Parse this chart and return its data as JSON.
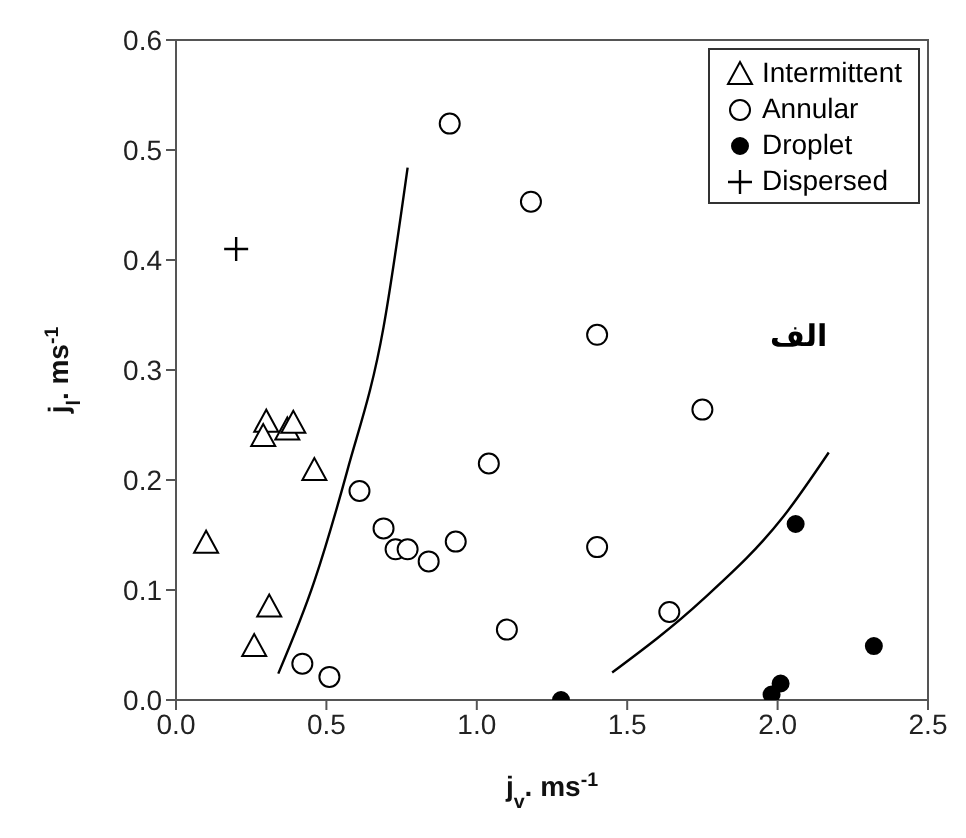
{
  "chart_data": {
    "type": "scatter",
    "xlabel": "j$_{v}$. ms$^{-1}$",
    "ylabel": "j$_{l}$. ms$^{-1}$",
    "annotations": [
      "الف"
    ],
    "xlim": [
      0,
      2.5
    ],
    "xticks": [
      {
        "value": 0,
        "label": "0.0"
      },
      0.5,
      {
        "value": 1,
        "label": "1.0"
      },
      1.5,
      {
        "value": 2,
        "label": "2.0"
      },
      2.5
    ],
    "ylim": [
      0,
      0.6
    ],
    "yticks": [
      {
        "value": 0,
        "label": "0.0"
      },
      0.1,
      0.2,
      0.3,
      0.4,
      0.5,
      0.6
    ],
    "legend": "top right",
    "series": [
      {
        "name": "Intermittent",
        "color": "#ffffff",
        "marker": "triangle",
        "x": [
          0.1,
          0.3,
          0.29,
          0.37,
          0.39,
          0.46,
          0.31,
          0.26
        ],
        "values": [
          0.143,
          0.253,
          0.24,
          0.246,
          0.252,
          0.209,
          0.085,
          0.049
        ]
      },
      {
        "name": "Annular",
        "color": "#ffffff",
        "marker": "circle",
        "x": [
          0.91,
          1.18,
          0.61,
          0.69,
          0.73,
          0.77,
          0.84,
          0.93,
          1.04,
          1.1,
          0.42,
          0.51,
          1.4,
          1.75,
          1.4,
          1.64
        ],
        "values": [
          0.524,
          0.453,
          0.19,
          0.156,
          0.137,
          0.137,
          0.126,
          0.144,
          0.215,
          0.064,
          0.033,
          0.021,
          0.332,
          0.264,
          0.139,
          0.08
        ]
      },
      {
        "name": "Droplet",
        "color": "#000000",
        "marker": "circle",
        "x": [
          1.28,
          2.06,
          2.32,
          2.01,
          1.98
        ],
        "values": [
          0.0,
          0.16,
          0.049,
          0.015,
          0.005
        ]
      },
      {
        "name": "Dispersed",
        "color": "#000000",
        "marker": "cross",
        "x": [
          0.2
        ],
        "values": [
          0.41
        ]
      },
      {
        "type": "line",
        "color": "#000000",
        "marker": "none",
        "line_style": "solid",
        "x": [
          0.34,
          0.46,
          0.57,
          0.69,
          0.77
        ],
        "values": [
          0.024,
          0.108,
          0.209,
          0.339,
          0.484
        ]
      },
      {
        "type": "line",
        "color": "#000000",
        "marker": "none",
        "line_style": "solid",
        "x": [
          1.45,
          1.75,
          2.02,
          2.17
        ],
        "values": [
          0.025,
          0.091,
          0.167,
          0.225
        ]
      }
    ]
  }
}
